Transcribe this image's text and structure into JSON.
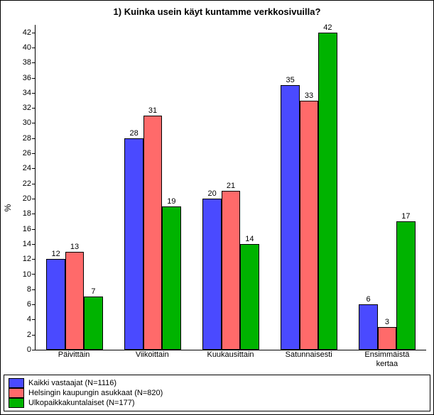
{
  "chart": {
    "type": "bar",
    "title": "1) Kuinka usein käyt kuntamme verkkosivuilla?",
    "title_fontsize": 13,
    "ylabel": "%",
    "label_fontsize": 12,
    "value_label_fontsize": 11,
    "tick_fontsize": 11,
    "background_color": "#ffffff",
    "border_color": "#000000",
    "ylim": [
      0,
      43
    ],
    "ytick_step": 2,
    "categories": [
      "Päivittäin",
      "Viikoittain",
      "Kuukausittain",
      "Satunnaisesti",
      "Ensimmäistä\nkertaa"
    ],
    "series": [
      {
        "name": "Kaikki vastaajat (N=1116)",
        "color": "#4a4aff",
        "values": [
          12,
          28,
          20,
          35,
          6
        ]
      },
      {
        "name": "Helsingin kaupungin asukkaat (N=820)",
        "color": "#ff6a6a",
        "values": [
          13,
          31,
          21,
          33,
          3
        ]
      },
      {
        "name": "Ulkopaikkakuntalaiset (N=177)",
        "color": "#00b300",
        "values": [
          7,
          19,
          14,
          42,
          17
        ]
      }
    ],
    "bar_group_width": 0.72,
    "bar_border_color": "#000000"
  }
}
